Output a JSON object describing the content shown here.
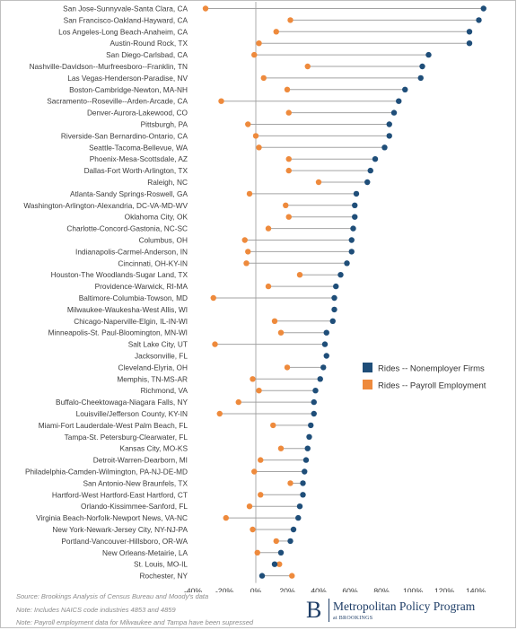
{
  "chart_data": {
    "type": "dumbbell",
    "orientation": "horizontal",
    "categories": [
      "San Jose-Sunnyvale-Santa Clara, CA",
      "San Francisco-Oakland-Hayward, CA",
      "Los Angeles-Long Beach-Anaheim, CA",
      "Austin-Round Rock, TX",
      "San Diego-Carlsbad, CA",
      "Nashville-Davidson--Murfreesboro--Franklin, TN",
      "Las Vegas-Henderson-Paradise, NV",
      "Boston-Cambridge-Newton, MA-NH",
      "Sacramento--Roseville--Arden-Arcade, CA",
      "Denver-Aurora-Lakewood, CO",
      "Pittsburgh, PA",
      "Riverside-San Bernardino-Ontario, CA",
      "Seattle-Tacoma-Bellevue, WA",
      "Phoenix-Mesa-Scottsdale, AZ",
      "Dallas-Fort Worth-Arlington, TX",
      "Raleigh, NC",
      "Atlanta-Sandy Springs-Roswell, GA",
      "Washington-Arlington-Alexandria, DC-VA-MD-WV",
      "Oklahoma City, OK",
      "Charlotte-Concord-Gastonia, NC-SC",
      "Columbus, OH",
      "Indianapolis-Carmel-Anderson, IN",
      "Cincinnati, OH-KY-IN",
      "Houston-The Woodlands-Sugar Land, TX",
      "Providence-Warwick, RI-MA",
      "Baltimore-Columbia-Towson, MD",
      "Milwaukee-Waukesha-West Allis, WI",
      "Chicago-Naperville-Elgin, IL-IN-WI",
      "Minneapolis-St. Paul-Bloomington, MN-WI",
      "Salt Lake City, UT",
      "Jacksonville, FL",
      "Cleveland-Elyria, OH",
      "Memphis, TN-MS-AR",
      "Richmond, VA",
      "Buffalo-Cheektowaga-Niagara Falls, NY",
      "Louisville/Jefferson County, KY-IN",
      "Miami-Fort Lauderdale-West Palm Beach, FL",
      "Tampa-St. Petersburg-Clearwater, FL",
      "Kansas City, MO-KS",
      "Detroit-Warren-Dearborn, MI",
      "Philadelphia-Camden-Wilmington, PA-NJ-DE-MD",
      "San Antonio-New Braunfels, TX",
      "Hartford-West Hartford-East Hartford, CT",
      "Orlando-Kissimmee-Sanford, FL",
      "Virginia Beach-Norfolk-Newport News, VA-NC",
      "New York-Newark-Jersey City, NY-NJ-PA",
      "Portland-Vancouver-Hillsboro, OR-WA",
      "New Orleans-Metairie, LA",
      "St. Louis, MO-IL",
      "Rochester, NY"
    ],
    "series": [
      {
        "name": "Rides -- Nonemployer Firms",
        "color": "#1f4e79",
        "values": [
          145,
          142,
          136,
          136,
          110,
          106,
          105,
          95,
          91,
          88,
          85,
          85,
          82,
          76,
          73,
          71,
          64,
          63,
          63,
          62,
          61,
          61,
          58,
          54,
          51,
          50,
          50,
          49,
          45,
          44,
          45,
          43,
          41,
          38,
          37,
          37,
          35,
          34,
          33,
          32,
          31,
          30,
          30,
          28,
          27,
          24,
          22,
          16,
          12,
          4
        ]
      },
      {
        "name": "Rides -- Payroll Employment",
        "color": "#ee8a3c",
        "values": [
          -32,
          22,
          13,
          2,
          -1,
          33,
          5,
          20,
          -22,
          21,
          -5,
          0,
          2,
          21,
          21,
          40,
          -4,
          19,
          21,
          8,
          -7,
          -5,
          -6,
          28,
          8,
          -27,
          null,
          12,
          16,
          -26,
          null,
          20,
          -2,
          2,
          -11,
          -23,
          11,
          null,
          16,
          3,
          -1,
          22,
          3,
          -4,
          -19,
          -2,
          13,
          1,
          15,
          23
        ]
      }
    ],
    "xaxis": {
      "min": -40,
      "max": 140,
      "step": 20,
      "tick_labels": [
        "-40%",
        "-20%",
        "0%",
        "20%",
        "40%",
        "60%",
        "80%",
        "100%",
        "120%",
        "140%"
      ]
    },
    "legend_position": "right",
    "grid": false
  },
  "footnotes": {
    "source": "Source: Brookings Analysis of Census Bureau and Moody's data",
    "note1": "Note: Includes NAICS code industries 4853 and 4859",
    "note2": "Note: Payroll employment data for Milwaukee and Tampa have been supressed"
  },
  "branding": {
    "mark": "B",
    "title": "Metropolitan Policy Program",
    "subtitle": "at BROOKINGS"
  }
}
